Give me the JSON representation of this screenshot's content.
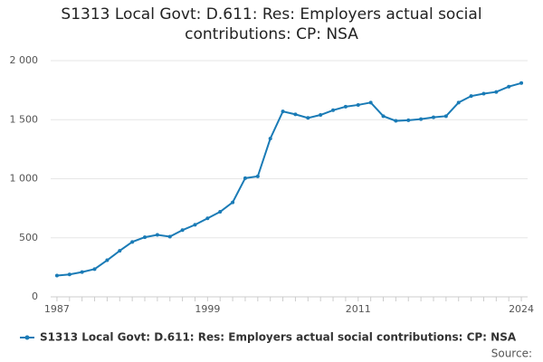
{
  "chart_data": {
    "type": "line",
    "title": "S1313 Local Govt: D.611: Res: Employers actual social contributions: CP: NSA",
    "source": "Source:",
    "x": [
      1987,
      1988,
      1989,
      1990,
      1991,
      1992,
      1993,
      1994,
      1995,
      1996,
      1997,
      1998,
      1999,
      2000,
      2001,
      2002,
      2003,
      2004,
      2005,
      2006,
      2007,
      2008,
      2009,
      2010,
      2011,
      2012,
      2013,
      2014,
      2015,
      2016,
      2017,
      2018,
      2019,
      2020,
      2021,
      2022,
      2023,
      2024
    ],
    "series": [
      {
        "name": "S1313 Local Govt: D.611: Res: Employers actual social contributions: CP: NSA",
        "color": "#1a7bb6",
        "values": [
          180,
          190,
          210,
          235,
          310,
          390,
          465,
          505,
          525,
          510,
          565,
          610,
          665,
          720,
          800,
          1005,
          1020,
          1340,
          1570,
          1545,
          1515,
          1540,
          1580,
          1610,
          1625,
          1645,
          1530,
          1490,
          1495,
          1505,
          1520,
          1530,
          1645,
          1700,
          1720,
          1735,
          1780,
          1810
        ]
      }
    ],
    "xlim": [
      1986.5,
      2024.5
    ],
    "xticks": [
      1987,
      1999,
      2011,
      2024
    ],
    "ylim": [
      0,
      2000
    ],
    "yticks": [
      0,
      500,
      {
        "value": 1000,
        "label": "1 000"
      },
      {
        "value": 1500,
        "label": "1 500"
      },
      {
        "value": 2000,
        "label": "2 000"
      }
    ],
    "grid": true
  }
}
